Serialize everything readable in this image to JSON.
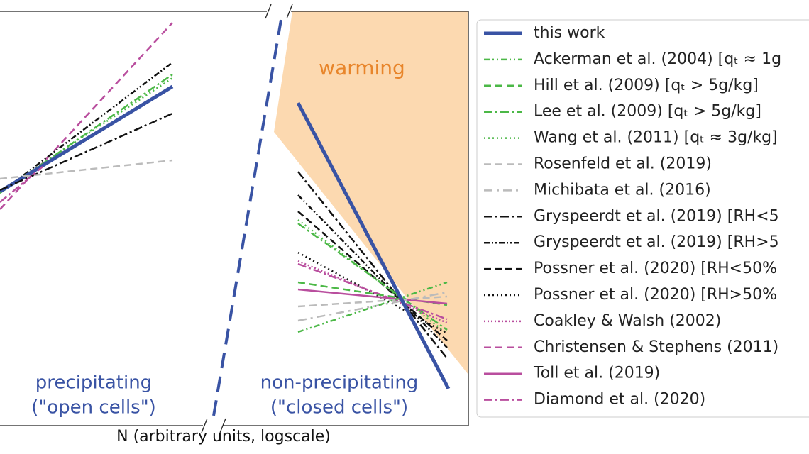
{
  "labels": {
    "warming": "warming",
    "left_1": "precipitating",
    "left_2": "(\"open cells\")",
    "right_1": "non-precipitating",
    "right_2": "(\"closed cells\")",
    "x_axis": "N (arbitrary units, logscale)"
  },
  "legend": [
    "this work",
    "Ackerman et al. (2004) [qₜ ≈ 1g",
    "Hill et al. (2009) [qₜ > 5g/kg]",
    "Lee et al. (2009) [qₜ > 5g/kg]",
    "Wang et al. (2011) [qₜ ≈ 3g/kg]",
    "Rosenfeld et al. (2019)",
    "Michibata et al. (2016)",
    "Gryspeerdt et al. (2019) [RH<5",
    "Gryspeerdt et al. (2019) [RH>5",
    "Possner et al. (2020) [RH<50%",
    "Possner et al. (2020) [RH>50%",
    "Coakley & Walsh (2002)",
    "Christensen & Stephens (2011)",
    "Toll et al. (2019)",
    "Diamond et al. (2020)"
  ]
}
